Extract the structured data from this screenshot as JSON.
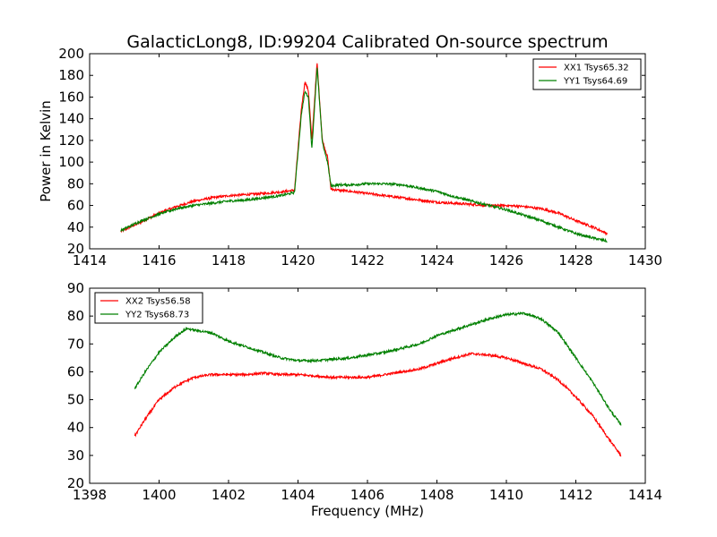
{
  "chart_data": [
    {
      "type": "line",
      "title": "GalacticLong8, ID:99204 Calibrated On-source spectrum",
      "xlabel": "",
      "ylabel": "Power in Kelvin",
      "xlim": [
        1414,
        1430
      ],
      "ylim": [
        20,
        200
      ],
      "xticks": [
        "1414",
        "1416",
        "1418",
        "1420",
        "1422",
        "1424",
        "1426",
        "1428",
        "1430"
      ],
      "yticks": [
        "20",
        "40",
        "60",
        "80",
        "100",
        "120",
        "140",
        "160",
        "180",
        "200"
      ],
      "grid": false,
      "legend_position": "top-right",
      "series": [
        {
          "name": "XX1 Tsys65.32",
          "color": "#ff0000",
          "points": [
            [
              1414.9,
              36
            ],
            [
              1415.5,
              45
            ],
            [
              1416.0,
              53
            ],
            [
              1416.5,
              59
            ],
            [
              1417.0,
              64
            ],
            [
              1417.5,
              67
            ],
            [
              1418.0,
              69
            ],
            [
              1418.5,
              70
            ],
            [
              1419.0,
              71
            ],
            [
              1419.5,
              72.5
            ],
            [
              1419.9,
              74
            ],
            [
              1420.1,
              150
            ],
            [
              1420.2,
              174
            ],
            [
              1420.3,
              166
            ],
            [
              1420.4,
              120
            ],
            [
              1420.55,
              192
            ],
            [
              1420.7,
              120
            ],
            [
              1420.85,
              105
            ],
            [
              1420.95,
              75
            ],
            [
              1421.2,
              74
            ],
            [
              1421.5,
              73
            ],
            [
              1422.0,
              71
            ],
            [
              1422.5,
              69
            ],
            [
              1423.0,
              67
            ],
            [
              1423.5,
              65
            ],
            [
              1424.0,
              63
            ],
            [
              1424.5,
              62
            ],
            [
              1425.0,
              61
            ],
            [
              1425.5,
              60
            ],
            [
              1426.0,
              60
            ],
            [
              1426.5,
              59
            ],
            [
              1427.0,
              57
            ],
            [
              1427.5,
              53
            ],
            [
              1428.0,
              46
            ],
            [
              1428.5,
              40
            ],
            [
              1428.9,
              34
            ]
          ]
        },
        {
          "name": "YY1 Tsys64.69",
          "color": "#008000",
          "points": [
            [
              1414.9,
              37
            ],
            [
              1415.5,
              46
            ],
            [
              1416.0,
              52
            ],
            [
              1416.5,
              57
            ],
            [
              1417.0,
              60
            ],
            [
              1417.5,
              62
            ],
            [
              1418.0,
              64
            ],
            [
              1418.5,
              65
            ],
            [
              1419.0,
              67
            ],
            [
              1419.5,
              69
            ],
            [
              1419.9,
              72
            ],
            [
              1420.1,
              145
            ],
            [
              1420.2,
              165
            ],
            [
              1420.3,
              160
            ],
            [
              1420.4,
              112
            ],
            [
              1420.55,
              188
            ],
            [
              1420.7,
              118
            ],
            [
              1420.85,
              100
            ],
            [
              1420.95,
              78
            ],
            [
              1421.2,
              79
            ],
            [
              1421.5,
              79
            ],
            [
              1422.0,
              80
            ],
            [
              1422.5,
              80
            ],
            [
              1423.0,
              79
            ],
            [
              1423.5,
              76
            ],
            [
              1424.0,
              73
            ],
            [
              1424.5,
              68
            ],
            [
              1425.0,
              64
            ],
            [
              1425.5,
              60
            ],
            [
              1426.0,
              56
            ],
            [
              1426.5,
              51
            ],
            [
              1427.0,
              46
            ],
            [
              1427.5,
              40
            ],
            [
              1428.0,
              34
            ],
            [
              1428.5,
              30
            ],
            [
              1428.9,
              27
            ]
          ]
        }
      ]
    },
    {
      "type": "line",
      "title": "",
      "xlabel": "Frequency (MHz)",
      "ylabel": "",
      "xlim": [
        1398,
        1414
      ],
      "ylim": [
        20,
        90
      ],
      "xticks": [
        "1398",
        "1400",
        "1402",
        "1404",
        "1406",
        "1408",
        "1410",
        "1412",
        "1414"
      ],
      "yticks": [
        "20",
        "30",
        "40",
        "50",
        "60",
        "70",
        "80",
        "90"
      ],
      "grid": false,
      "legend_position": "top-left",
      "series": [
        {
          "name": "XX2 Tsys56.58",
          "color": "#ff0000",
          "points": [
            [
              1399.3,
              37
            ],
            [
              1399.6,
              43
            ],
            [
              1400.0,
              50
            ],
            [
              1400.5,
              55
            ],
            [
              1401.0,
              58
            ],
            [
              1401.5,
              59
            ],
            [
              1402.0,
              59
            ],
            [
              1402.5,
              59
            ],
            [
              1403.0,
              59.5
            ],
            [
              1403.5,
              59
            ],
            [
              1404.0,
              59
            ],
            [
              1404.5,
              58.5
            ],
            [
              1405.0,
              58
            ],
            [
              1405.5,
              58
            ],
            [
              1406.0,
              58
            ],
            [
              1406.5,
              59
            ],
            [
              1407.0,
              60
            ],
            [
              1407.5,
              61
            ],
            [
              1408.0,
              63
            ],
            [
              1408.5,
              65
            ],
            [
              1409.0,
              66.5
            ],
            [
              1409.5,
              66
            ],
            [
              1410.0,
              65
            ],
            [
              1410.5,
              63
            ],
            [
              1411.0,
              61
            ],
            [
              1411.5,
              57
            ],
            [
              1412.0,
              51
            ],
            [
              1412.5,
              44
            ],
            [
              1413.0,
              35
            ],
            [
              1413.3,
              30
            ]
          ]
        },
        {
          "name": "YY2 Tsys68.73",
          "color": "#008000",
          "points": [
            [
              1399.3,
              54
            ],
            [
              1399.6,
              60
            ],
            [
              1400.0,
              67
            ],
            [
              1400.5,
              73
            ],
            [
              1400.8,
              75.5
            ],
            [
              1401.0,
              75
            ],
            [
              1401.5,
              74
            ],
            [
              1402.0,
              71
            ],
            [
              1402.5,
              69
            ],
            [
              1403.0,
              67
            ],
            [
              1403.5,
              65
            ],
            [
              1404.0,
              64
            ],
            [
              1404.5,
              64
            ],
            [
              1405.0,
              64.5
            ],
            [
              1405.5,
              65
            ],
            [
              1406.0,
              66
            ],
            [
              1406.5,
              67
            ],
            [
              1407.0,
              68.5
            ],
            [
              1407.5,
              70
            ],
            [
              1408.0,
              73
            ],
            [
              1408.5,
              75
            ],
            [
              1409.0,
              77
            ],
            [
              1409.5,
              79
            ],
            [
              1410.0,
              80.5
            ],
            [
              1410.5,
              81
            ],
            [
              1411.0,
              79
            ],
            [
              1411.5,
              74
            ],
            [
              1412.0,
              65
            ],
            [
              1412.5,
              56
            ],
            [
              1413.0,
              46
            ],
            [
              1413.3,
              41
            ]
          ]
        }
      ]
    }
  ]
}
